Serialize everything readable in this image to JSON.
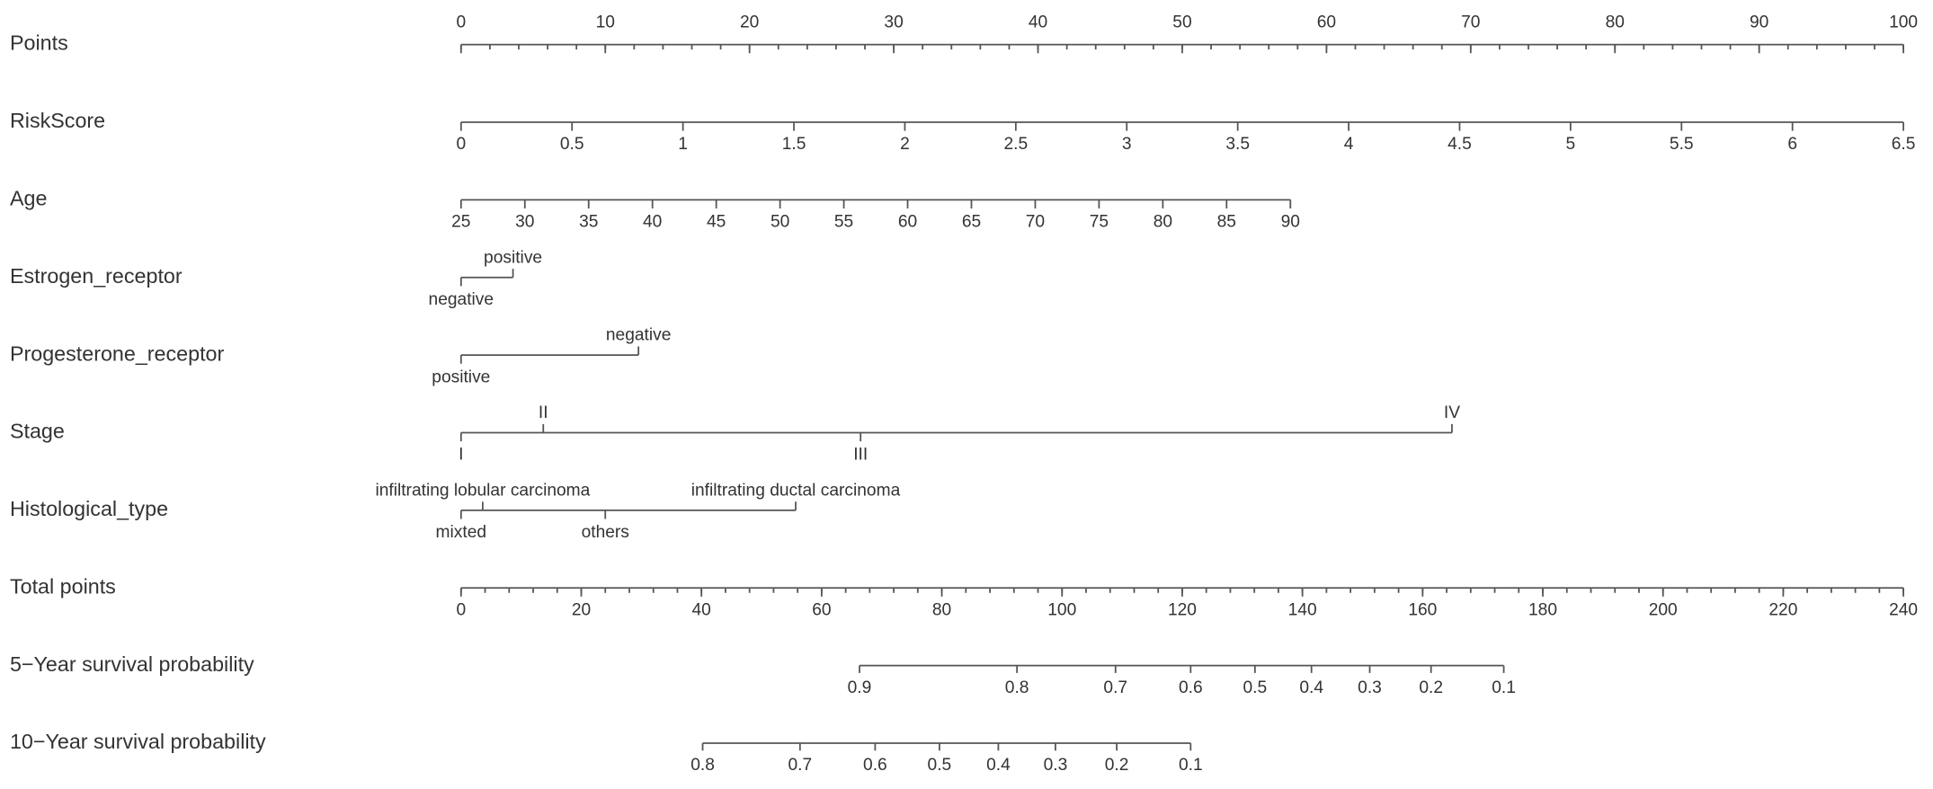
{
  "chart_data": {
    "type": "nomogram",
    "rows": [
      {
        "name": "Points",
        "ticks": [
          0,
          10,
          20,
          30,
          40,
          50,
          60,
          70,
          80,
          90,
          100
        ],
        "lim": [
          0,
          100
        ],
        "minor_step": 2
      },
      {
        "name": "RiskScore",
        "ticks": [
          0,
          0.5,
          1,
          1.5,
          2,
          2.5,
          3,
          3.5,
          4,
          4.5,
          5,
          5.5,
          6,
          6.5
        ],
        "lim": [
          0,
          6.5
        ],
        "points": [
          0,
          100
        ]
      },
      {
        "name": "Age",
        "ticks": [
          25,
          30,
          35,
          40,
          45,
          50,
          55,
          60,
          65,
          70,
          75,
          80,
          85,
          90
        ],
        "lim": [
          25,
          90
        ],
        "points": [
          0,
          57.5
        ]
      },
      {
        "name": "Estrogen_receptor",
        "levels": [
          "negative",
          "positive"
        ],
        "points": [
          0,
          3.6
        ]
      },
      {
        "name": "Progesterone_receptor",
        "levels": [
          "positive",
          "negative"
        ],
        "points": [
          0,
          12.3
        ]
      },
      {
        "name": "Stage",
        "levels": [
          "I",
          "II",
          "III",
          "IV"
        ],
        "points": [
          0,
          5.7,
          27.7,
          68.7
        ]
      },
      {
        "name": "Histological_type",
        "levels": [
          "mixted",
          "infiltrating lobular carcinoma",
          "others",
          "infiltrating ductal carcinoma"
        ],
        "points": [
          0,
          1.5,
          10,
          23.2
        ]
      },
      {
        "name": "Total points",
        "ticks": [
          0,
          20,
          40,
          60,
          80,
          100,
          120,
          140,
          160,
          180,
          200,
          220,
          240
        ],
        "lim": [
          0,
          240
        ],
        "minor_step": 4
      },
      {
        "name": "5−Year survival probability",
        "ticks": [
          0.9,
          0.8,
          0.7,
          0.6,
          0.5,
          0.4,
          0.3,
          0.2,
          0.1
        ],
        "total_points": [
          66.3,
          92.5,
          108.9,
          121.4,
          132.1,
          141.5,
          151.2,
          161.4,
          173.5
        ]
      },
      {
        "name": "10−Year survival probability",
        "ticks": [
          0.8,
          0.7,
          0.6,
          0.5,
          0.4,
          0.3,
          0.2,
          0.1
        ],
        "total_points": [
          40.2,
          56.4,
          68.9,
          79.6,
          89.4,
          98.9,
          109.1,
          121.4
        ]
      }
    ]
  }
}
